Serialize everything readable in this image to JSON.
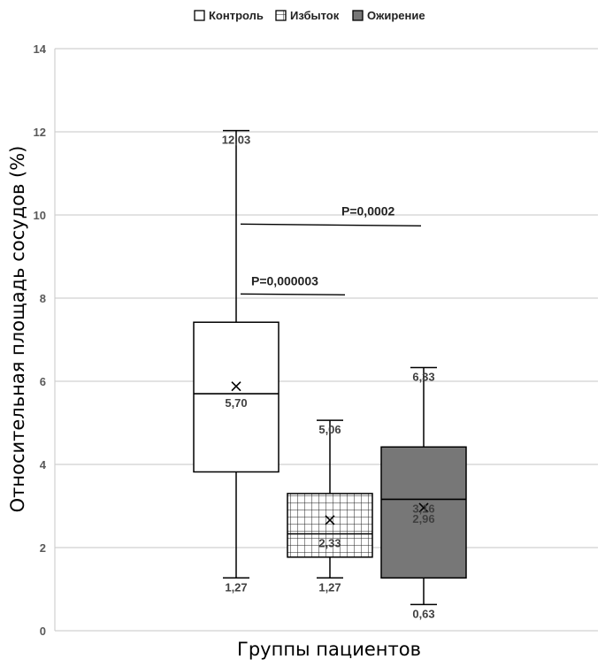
{
  "chart_data": {
    "type": "box",
    "xlabel": "Группы пациентов",
    "ylabel": "Относительная площадь сосудов (%)",
    "ylim": [
      0,
      14
    ],
    "yticks": [
      0,
      2,
      4,
      6,
      8,
      10,
      12,
      14
    ],
    "grid": true,
    "legend_position": "top",
    "series": [
      {
        "name": "Контроль",
        "fill": "white",
        "min": 1.27,
        "q1": 3.82,
        "median": 5.7,
        "q3": 7.42,
        "max": 12.03,
        "mean": 5.88,
        "labels": {
          "min": "1,27",
          "median": "5,70",
          "max": "12,03"
        }
      },
      {
        "name": "Избыток",
        "fill": "grid",
        "min": 1.27,
        "q1": 1.77,
        "median": 2.33,
        "q3": 3.3,
        "max": 5.06,
        "mean": 2.66,
        "labels": {
          "min": "1,27",
          "median": "2,33",
          "max": "5,06"
        }
      },
      {
        "name": "Ожирение",
        "fill": "#777777",
        "min": 0.63,
        "q1": 1.27,
        "median": 3.16,
        "q3": 4.42,
        "max": 6.33,
        "mean": 2.96,
        "labels": {
          "min": "0,63",
          "median": "3,16",
          "mean": "2,96",
          "max": "6,33"
        }
      }
    ],
    "annotations": [
      {
        "text": "P=0,000003",
        "y": 8.1
      },
      {
        "text": "P=0,0002",
        "y": 9.78
      }
    ]
  }
}
